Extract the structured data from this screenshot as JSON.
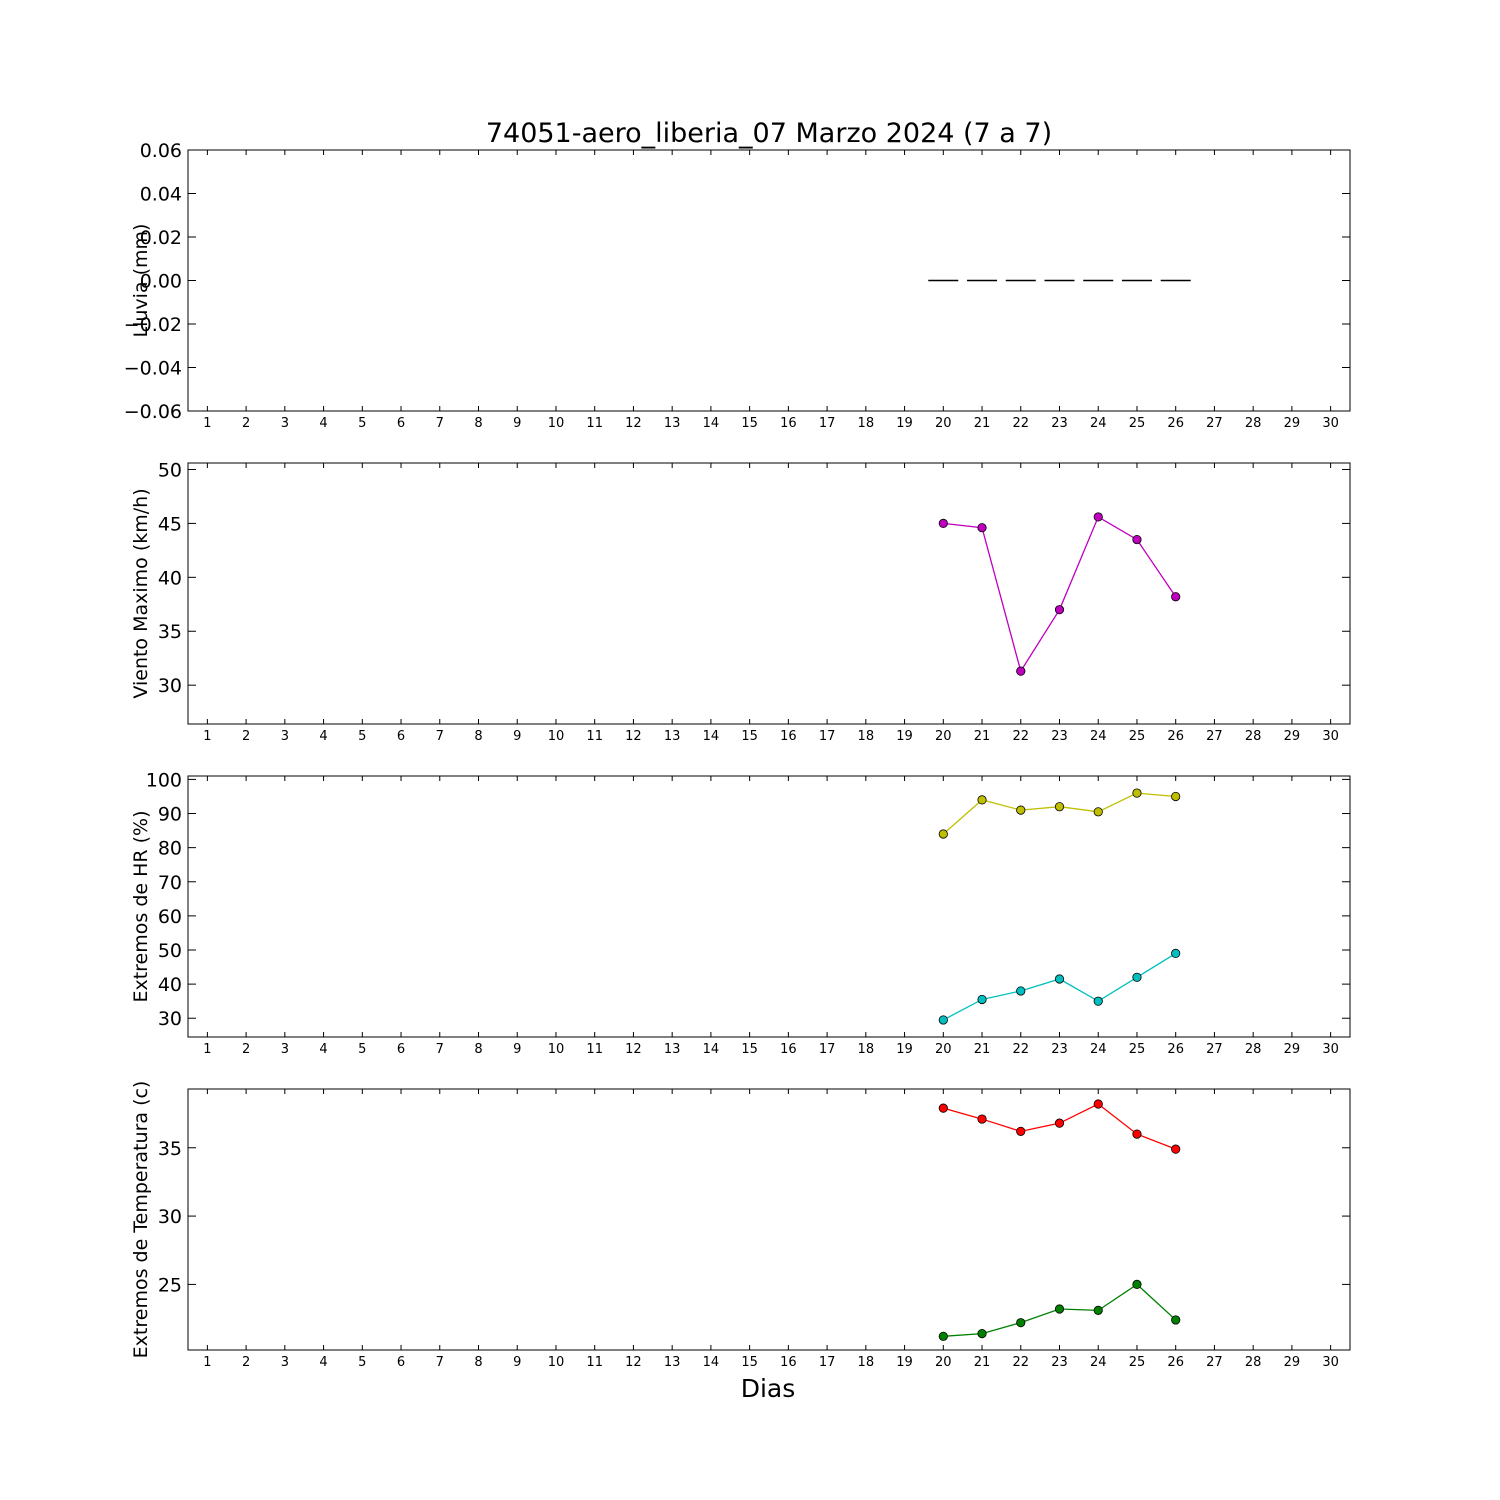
{
  "figure": {
    "title": "74051-aero_liberia_07 Marzo 2024  (7 a 7)",
    "xlabel": "Dias"
  },
  "chart_data": [
    {
      "type": "line",
      "ylabel": "Lluvia (mm)",
      "x_ticks": [
        1,
        2,
        3,
        4,
        5,
        6,
        7,
        8,
        9,
        10,
        11,
        12,
        13,
        14,
        15,
        16,
        17,
        18,
        19,
        20,
        21,
        22,
        23,
        24,
        25,
        26,
        27,
        28,
        29,
        30
      ],
      "xlim": [
        0.5,
        30.5
      ],
      "ylim": [
        -0.06,
        0.06
      ],
      "y_ticks": [
        -0.06,
        -0.04,
        -0.02,
        0.0,
        0.02,
        0.04,
        0.06
      ],
      "y_tick_labels": [
        "−0.06",
        "−0.04",
        "−0.02",
        "0.00",
        "0.02",
        "0.04",
        "0.06"
      ],
      "series": [
        {
          "style": "hbar",
          "color": "#000000",
          "x": [
            20,
            21,
            22,
            23,
            24,
            25,
            26
          ],
          "values": [
            0,
            0,
            0,
            0,
            0,
            0,
            0
          ]
        }
      ]
    },
    {
      "type": "line",
      "ylabel": "Viento Maximo (km/h)",
      "x_ticks": [
        1,
        2,
        3,
        4,
        5,
        6,
        7,
        8,
        9,
        10,
        11,
        12,
        13,
        14,
        15,
        16,
        17,
        18,
        19,
        20,
        21,
        22,
        23,
        24,
        25,
        26,
        27,
        28,
        29,
        30
      ],
      "xlim": [
        0.5,
        30.5
      ],
      "ylim": [
        26.4,
        50.6
      ],
      "y_ticks": [
        30,
        35,
        40,
        45,
        50
      ],
      "y_tick_labels": [
        "30",
        "35",
        "40",
        "45",
        "50"
      ],
      "series": [
        {
          "style": "line-marker",
          "color": "#bf00bf",
          "x": [
            20,
            21,
            22,
            23,
            24,
            25,
            26
          ],
          "values": [
            45.0,
            44.6,
            31.3,
            37.0,
            45.6,
            43.5,
            38.2
          ]
        }
      ]
    },
    {
      "type": "line",
      "ylabel": "Extremos de HR (%)",
      "x_ticks": [
        1,
        2,
        3,
        4,
        5,
        6,
        7,
        8,
        9,
        10,
        11,
        12,
        13,
        14,
        15,
        16,
        17,
        18,
        19,
        20,
        21,
        22,
        23,
        24,
        25,
        26,
        27,
        28,
        29,
        30
      ],
      "xlim": [
        0.5,
        30.5
      ],
      "ylim": [
        24.5,
        101
      ],
      "y_ticks": [
        30,
        40,
        50,
        60,
        70,
        80,
        90,
        100
      ],
      "y_tick_labels": [
        "30",
        "40",
        "50",
        "60",
        "70",
        "80",
        "90",
        "100"
      ],
      "series": [
        {
          "style": "line-marker",
          "color": "#bfbf00",
          "x": [
            20,
            21,
            22,
            23,
            24,
            25,
            26
          ],
          "values": [
            84,
            94,
            91,
            92,
            90.5,
            96,
            95
          ]
        },
        {
          "style": "line-marker",
          "color": "#00bfbf",
          "x": [
            20,
            21,
            22,
            23,
            24,
            25,
            26
          ],
          "values": [
            29.5,
            35.5,
            38,
            41.5,
            35,
            42,
            49
          ]
        }
      ]
    },
    {
      "type": "line",
      "ylabel": "Extremos de Temperatura (c)",
      "x_ticks": [
        1,
        2,
        3,
        4,
        5,
        6,
        7,
        8,
        9,
        10,
        11,
        12,
        13,
        14,
        15,
        16,
        17,
        18,
        19,
        20,
        21,
        22,
        23,
        24,
        25,
        26,
        27,
        28,
        29,
        30
      ],
      "xlim": [
        0.5,
        30.5
      ],
      "ylim": [
        20.2,
        39.3
      ],
      "y_ticks": [
        25,
        30,
        35
      ],
      "y_tick_labels": [
        "25",
        "30",
        "35"
      ],
      "series": [
        {
          "style": "line-marker",
          "color": "#ff0000",
          "x": [
            20,
            21,
            22,
            23,
            24,
            25,
            26
          ],
          "values": [
            37.9,
            37.1,
            36.2,
            36.8,
            38.2,
            36.0,
            34.9
          ]
        },
        {
          "style": "line-marker",
          "color": "#008000",
          "x": [
            20,
            21,
            22,
            23,
            24,
            25,
            26
          ],
          "values": [
            21.2,
            21.4,
            22.2,
            23.2,
            23.1,
            25.0,
            22.4
          ]
        }
      ]
    }
  ]
}
